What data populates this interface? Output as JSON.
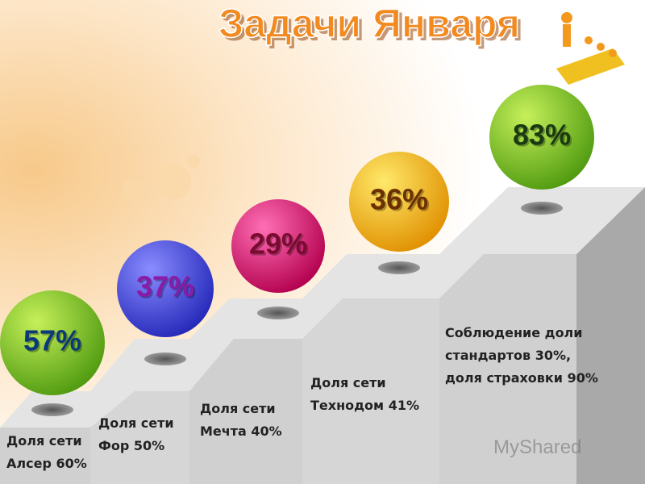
{
  "title": "Задачи Января",
  "steps": [
    {
      "percent": "57%",
      "lines": [
        "Доля сети",
        "Алсер 60%"
      ]
    },
    {
      "percent": "37%",
      "lines": [
        "Доля сети",
        "Фор 50%"
      ]
    },
    {
      "percent": "29%",
      "lines": [
        "Доля сети",
        "Мечта 40%"
      ]
    },
    {
      "percent": "36%",
      "lines": [
        "Доля сети",
        "Технодом 41%"
      ]
    },
    {
      "percent": "83%",
      "lines": [
        "Соблюдение доли",
        "стандартов 30%,",
        "доля страховки 90%"
      ]
    }
  ],
  "watermark": "MyShared"
}
